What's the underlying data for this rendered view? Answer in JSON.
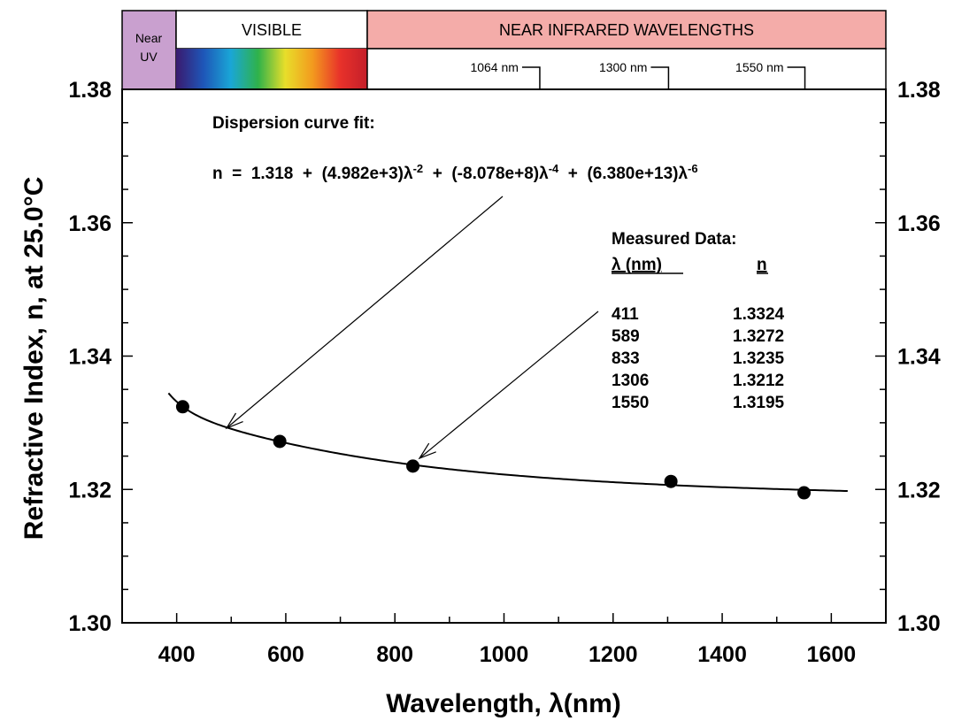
{
  "chart_data": {
    "type": "scatter",
    "xlabel": "Wavelength, λ(nm)",
    "ylabel": "Refractive Index, n, at 25.0°C",
    "xlim": [
      300,
      1700
    ],
    "ylim": [
      1.3,
      1.38
    ],
    "x_ticks": [
      "400",
      "600",
      "800",
      "1000",
      "1200",
      "1400",
      "1600"
    ],
    "y_ticks": [
      "1.30",
      "1.32",
      "1.34",
      "1.36",
      "1.38"
    ],
    "grid": false,
    "spectrum_bands": {
      "near_uv": [
        "Near",
        "UV"
      ],
      "visible": "VISIBLE",
      "near_ir": "NEAR INFRARED WAVELENGTHS",
      "markers": [
        {
          "label": "1064 nm",
          "x": 1064
        },
        {
          "label": "1300 nm",
          "x": 1300
        },
        {
          "label": "1550 nm",
          "x": 1550
        }
      ]
    },
    "fit": {
      "title": "Dispersion curve fit:",
      "equation": {
        "lhs": "n  =  1.318  +  ",
        "t1": "(4.982e+3)λ",
        "e1": "-2",
        "p1": "  +  ",
        "t2": "(-8.078e+8)λ",
        "e2": "-4",
        "p2": "  +  ",
        "t3": "(6.380e+13)λ",
        "e3": "-6"
      },
      "coefficients": {
        "A": 1.318,
        "B": 4982,
        "C": -807800000,
        "D": 63800000000000
      },
      "x_range": [
        385,
        1630
      ]
    },
    "measured": {
      "title": "Measured Data:",
      "col_headers": [
        "λ (nm)",
        "n"
      ],
      "rows": [
        [
          "411",
          "1.3324"
        ],
        [
          "589",
          "1.3272"
        ],
        [
          "833",
          "1.3235"
        ],
        [
          "1306",
          "1.3212"
        ],
        [
          "1550",
          "1.3195"
        ]
      ],
      "points": [
        {
          "x": 411,
          "y": 1.3324
        },
        {
          "x": 589,
          "y": 1.3272
        },
        {
          "x": 833,
          "y": 1.3235
        },
        {
          "x": 1306,
          "y": 1.3212
        },
        {
          "x": 1550,
          "y": 1.3195
        }
      ]
    },
    "colors": {
      "near_uv": "#c9a0cf",
      "near_ir": "#f4aca9",
      "spectrum": [
        "#3a1a6e",
        "#1e56b8",
        "#1aa6d6",
        "#2fb24a",
        "#e8de2a",
        "#f39a1e",
        "#e8322a",
        "#c41e2a"
      ]
    }
  }
}
